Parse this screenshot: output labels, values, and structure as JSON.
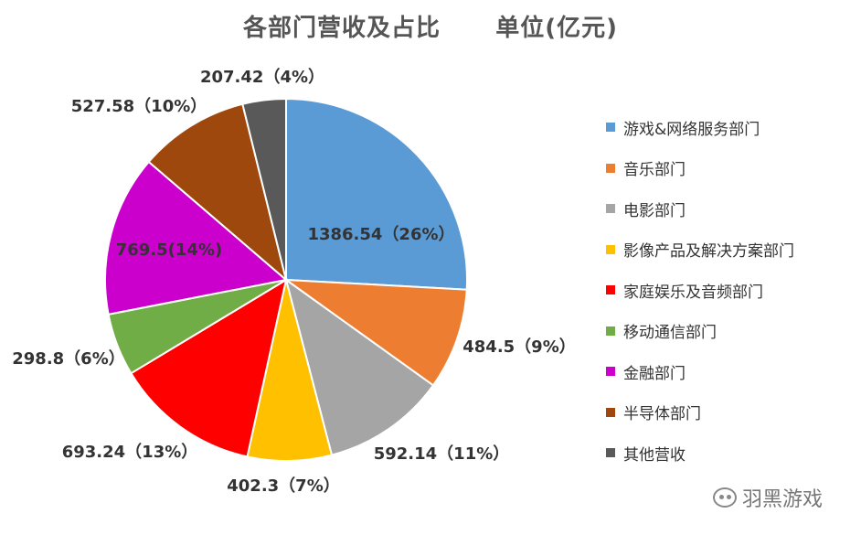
{
  "chart_data": {
    "type": "pie",
    "title": "各部门营收及占比      单位(亿元)",
    "slices": [
      {
        "name": "游戏&网络服务部门",
        "value": 1386.54,
        "label": "1386.54（26%）",
        "color": "#5B9BD5"
      },
      {
        "name": "音乐部门",
        "value": 484.5,
        "label": "484.5（9%）",
        "color": "#ED7D31"
      },
      {
        "name": "电影部门",
        "value": 592.14,
        "label": "592.14（11%）",
        "color": "#A5A5A5"
      },
      {
        "name": "影像产品及解决方案部门",
        "value": 402.3,
        "label": "402.3（7%）",
        "color": "#FFC000"
      },
      {
        "name": "家庭娱乐及音频部门",
        "value": 693.24,
        "label": "693.24（13%）",
        "color": "#FF0000"
      },
      {
        "name": "移动通信部门",
        "value": 298.8,
        "label": "298.8（6%）",
        "color": "#70AD47"
      },
      {
        "name": "金融部门",
        "value": 769.5,
        "label": "769.5(14%)",
        "color": "#CC00CC"
      },
      {
        "name": "半导体部门",
        "value": 527.58,
        "label": "527.58（10%）",
        "color": "#9E480E"
      },
      {
        "name": "其他营收",
        "value": 207.42,
        "label": "207.42（4%）",
        "color": "#595959"
      }
    ],
    "legend_position": "right"
  },
  "watermark": {
    "text": "羽黑游戏"
  }
}
